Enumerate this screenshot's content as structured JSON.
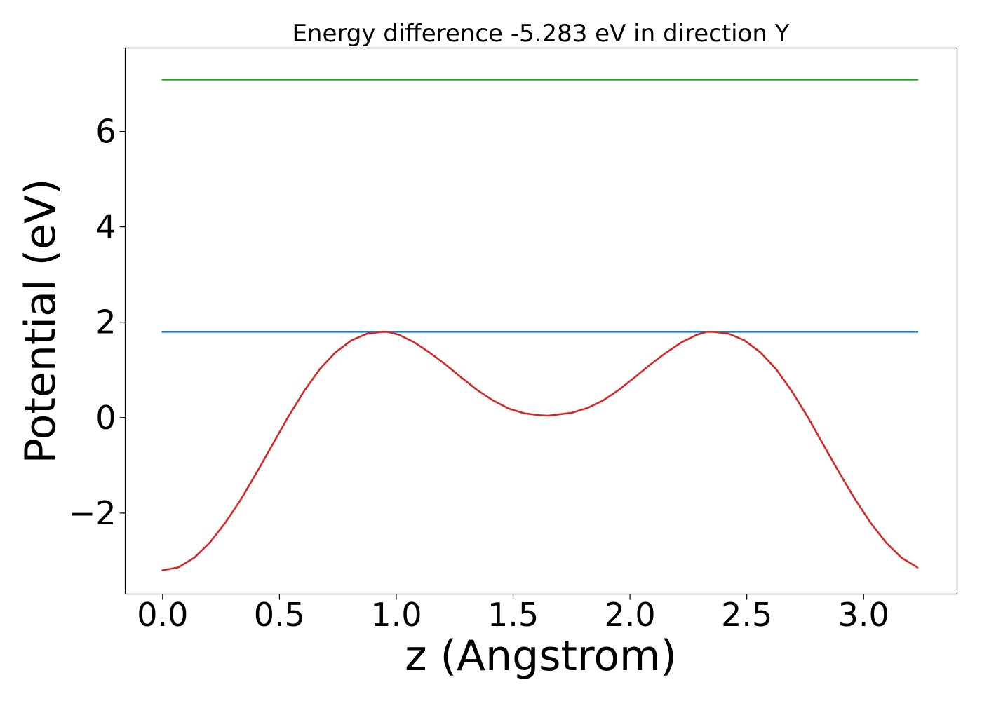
{
  "chart_data": {
    "type": "line",
    "title": "Energy difference -5.283 eV in direction Y",
    "xlabel": "z (Angstrom)",
    "ylabel": "Potential (eV)",
    "xlim": [
      -0.16,
      3.4
    ],
    "ylim": [
      -3.7,
      7.75
    ],
    "x_ticks": [
      0.0,
      0.5,
      1.0,
      1.5,
      2.0,
      2.5,
      3.0
    ],
    "x_tick_labels": [
      "0.0",
      "0.5",
      "1.0",
      "1.5",
      "2.0",
      "2.5",
      "3.0"
    ],
    "y_ticks": [
      -2,
      0,
      2,
      4,
      6
    ],
    "y_tick_labels": [
      "−2",
      "0",
      "2",
      "4",
      "6"
    ],
    "grid": false,
    "series": [
      {
        "color": "#2ca02c",
        "x": [
          0.0,
          3.23
        ],
        "y": [
          7.09,
          7.09
        ]
      },
      {
        "color": "#1f77b4",
        "x": [
          0.0,
          3.23
        ],
        "y": [
          1.8,
          1.8
        ]
      },
      {
        "color": "#d62728",
        "x": [
          0.0,
          0.067,
          0.135,
          0.202,
          0.269,
          0.337,
          0.404,
          0.471,
          0.538,
          0.606,
          0.673,
          0.74,
          0.808,
          0.875,
          0.942,
          0.96,
          1.01,
          1.077,
          1.144,
          1.212,
          1.279,
          1.346,
          1.414,
          1.481,
          1.548,
          1.615,
          1.65,
          1.683,
          1.75,
          1.817,
          1.885,
          1.952,
          2.019,
          2.086,
          2.154,
          2.221,
          2.288,
          2.33,
          2.356,
          2.423,
          2.49,
          2.558,
          2.625,
          2.692,
          2.76,
          2.827,
          2.894,
          2.962,
          3.029,
          3.096,
          3.163,
          3.23
        ],
        "y": [
          -3.2,
          -3.14,
          -2.94,
          -2.62,
          -2.2,
          -1.7,
          -1.14,
          -0.56,
          0.02,
          0.56,
          1.02,
          1.37,
          1.62,
          1.76,
          1.8,
          1.8,
          1.74,
          1.58,
          1.36,
          1.11,
          0.84,
          0.58,
          0.36,
          0.19,
          0.09,
          0.05,
          0.04,
          0.06,
          0.1,
          0.2,
          0.36,
          0.58,
          0.84,
          1.11,
          1.36,
          1.58,
          1.74,
          1.8,
          1.8,
          1.76,
          1.62,
          1.37,
          1.02,
          0.56,
          0.02,
          -0.56,
          -1.14,
          -1.7,
          -2.2,
          -2.62,
          -2.94,
          -3.14
        ]
      }
    ]
  }
}
